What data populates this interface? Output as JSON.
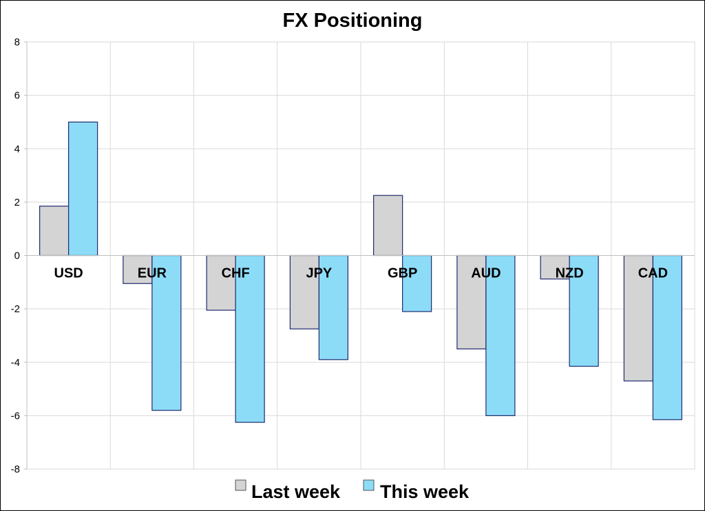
{
  "chart_data": {
    "type": "bar",
    "title": "FX Positioning",
    "xlabel": "",
    "ylabel": "",
    "categories": [
      "USD",
      "EUR",
      "CHF",
      "JPY",
      "GBP",
      "AUD",
      "NZD",
      "CAD"
    ],
    "series": [
      {
        "name": "Last week",
        "values": [
          1.85,
          -1.05,
          -2.05,
          -2.75,
          2.25,
          -3.5,
          -0.88,
          -4.7
        ],
        "color": "#d4d4d4"
      },
      {
        "name": "This week",
        "values": [
          5.0,
          -5.8,
          -6.25,
          -3.9,
          -2.1,
          -6.0,
          -4.15,
          -6.15
        ],
        "color": "#8cdcf8"
      }
    ],
    "bar_border_color": "#1f2a6e",
    "ylim": [
      -8,
      8
    ],
    "yticks": [
      8,
      6,
      4,
      2,
      0,
      -2,
      -4,
      -6,
      -8
    ],
    "grid": true,
    "legend_position": "bottom"
  }
}
